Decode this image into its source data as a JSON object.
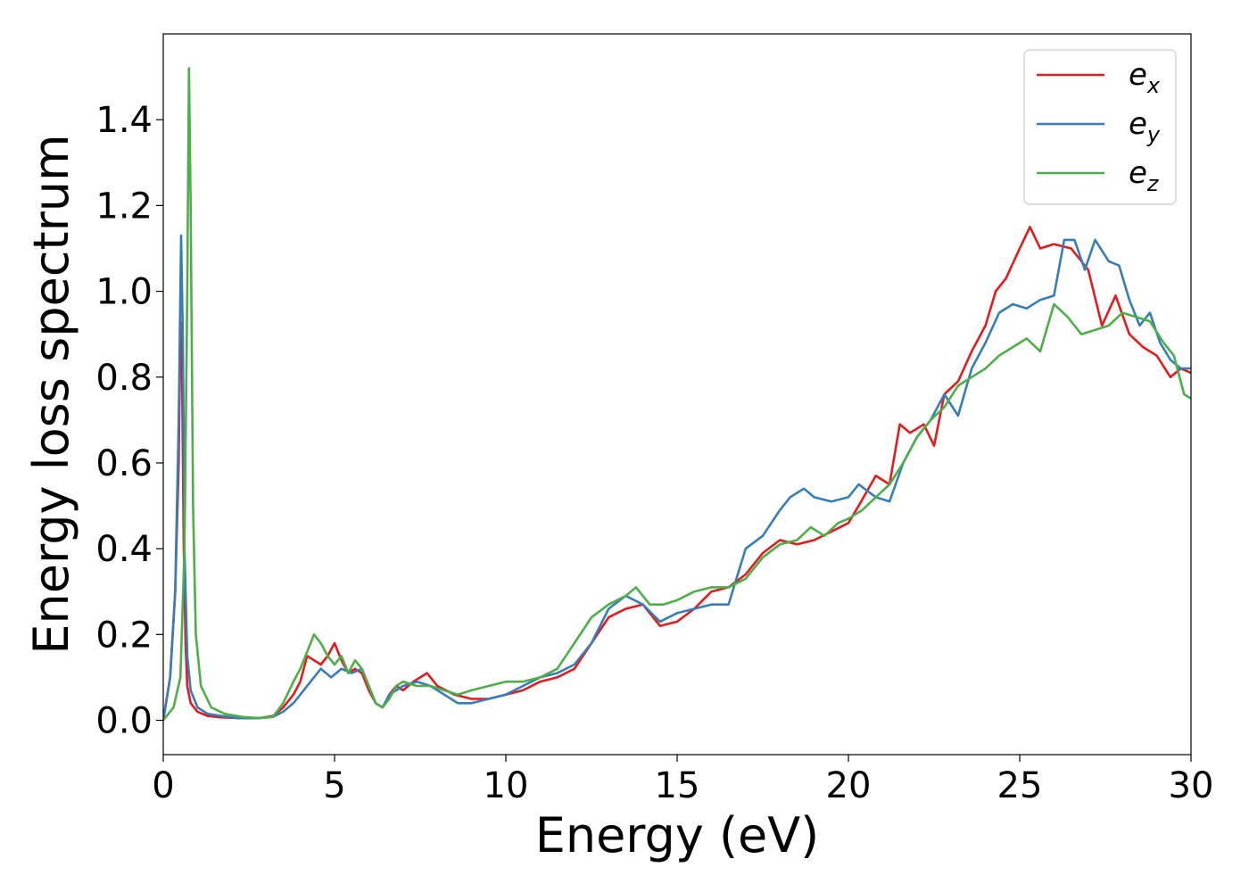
{
  "chart_data": {
    "type": "line",
    "title": "",
    "xlabel": "Energy (eV)",
    "ylabel": "Energy loss spectrum",
    "xlim": [
      0,
      30
    ],
    "ylim": [
      -0.08,
      1.6
    ],
    "xticks": [
      0,
      5,
      10,
      15,
      20,
      25,
      30
    ],
    "xtick_labels": [
      "0",
      "5",
      "10",
      "15",
      "20",
      "25",
      "30"
    ],
    "yticks": [
      0.0,
      0.2,
      0.4,
      0.6,
      0.8,
      1.0,
      1.2,
      1.4
    ],
    "ytick_labels": [
      "0.0",
      "0.2",
      "0.4",
      "0.6",
      "0.8",
      "1.0",
      "1.2",
      "1.4"
    ],
    "grid": false,
    "legend_position": "top-right",
    "series": [
      {
        "name": "e_x",
        "legend_base": "e",
        "legend_sub": "x",
        "color": "#e41a1c",
        "x": [
          0,
          0.2,
          0.35,
          0.45,
          0.5,
          0.55,
          0.6,
          0.65,
          0.7,
          0.8,
          1.0,
          1.3,
          1.7,
          2.2,
          2.8,
          3.2,
          3.5,
          3.8,
          4.0,
          4.2,
          4.4,
          4.6,
          4.8,
          5.0,
          5.2,
          5.4,
          5.6,
          5.8,
          6.0,
          6.2,
          6.4,
          6.6,
          6.8,
          7.0,
          7.3,
          7.7,
          8.0,
          8.5,
          9.0,
          9.5,
          10.0,
          10.5,
          11.0,
          11.5,
          12.0,
          12.5,
          13.0,
          13.5,
          14.0,
          14.5,
          15.0,
          15.5,
          16.0,
          16.5,
          17.0,
          17.5,
          18.0,
          18.5,
          19.0,
          19.5,
          20.0,
          20.3,
          20.8,
          21.2,
          21.5,
          21.8,
          22.2,
          22.5,
          22.8,
          23.2,
          23.6,
          24.0,
          24.3,
          24.6,
          25.0,
          25.3,
          25.6,
          26.0,
          26.5,
          27.0,
          27.4,
          27.8,
          28.2,
          28.6,
          29.0,
          29.4,
          29.7,
          30.0
        ],
        "y": [
          0.0,
          0.1,
          0.3,
          0.6,
          0.93,
          0.8,
          0.4,
          0.18,
          0.08,
          0.04,
          0.02,
          0.01,
          0.007,
          0.005,
          0.005,
          0.01,
          0.03,
          0.06,
          0.09,
          0.15,
          0.14,
          0.13,
          0.15,
          0.18,
          0.14,
          0.11,
          0.12,
          0.11,
          0.07,
          0.04,
          0.03,
          0.06,
          0.08,
          0.07,
          0.09,
          0.11,
          0.08,
          0.06,
          0.05,
          0.05,
          0.06,
          0.07,
          0.09,
          0.1,
          0.12,
          0.18,
          0.24,
          0.26,
          0.27,
          0.22,
          0.23,
          0.26,
          0.3,
          0.31,
          0.34,
          0.39,
          0.42,
          0.41,
          0.42,
          0.44,
          0.46,
          0.5,
          0.57,
          0.55,
          0.69,
          0.67,
          0.69,
          0.64,
          0.76,
          0.79,
          0.86,
          0.92,
          1.0,
          1.03,
          1.1,
          1.15,
          1.1,
          1.11,
          1.1,
          1.05,
          0.92,
          0.99,
          0.9,
          0.87,
          0.85,
          0.8,
          0.82,
          0.81
        ]
      },
      {
        "name": "e_y",
        "legend_base": "e",
        "legend_sub": "y",
        "color": "#377eb8",
        "x": [
          0,
          0.2,
          0.35,
          0.45,
          0.52,
          0.57,
          0.62,
          0.7,
          0.8,
          1.0,
          1.3,
          1.7,
          2.2,
          2.8,
          3.2,
          3.5,
          3.8,
          4.0,
          4.3,
          4.6,
          4.9,
          5.2,
          5.5,
          5.8,
          6.0,
          6.2,
          6.4,
          6.6,
          6.8,
          7.0,
          7.4,
          7.8,
          8.2,
          8.6,
          9.0,
          9.5,
          10.0,
          10.5,
          11.0,
          11.5,
          12.0,
          12.5,
          13.0,
          13.5,
          14.0,
          14.5,
          15.0,
          15.5,
          16.0,
          16.5,
          17.0,
          17.5,
          18.0,
          18.3,
          18.7,
          19.0,
          19.5,
          20.0,
          20.3,
          20.8,
          21.2,
          21.6,
          22.0,
          22.4,
          22.8,
          23.2,
          23.6,
          24.0,
          24.4,
          24.8,
          25.2,
          25.6,
          26.0,
          26.3,
          26.6,
          26.9,
          27.2,
          27.6,
          27.9,
          28.2,
          28.5,
          28.8,
          29.1,
          29.4,
          29.7,
          30.0
        ],
        "y": [
          0.0,
          0.1,
          0.3,
          0.7,
          1.13,
          0.9,
          0.4,
          0.15,
          0.07,
          0.03,
          0.015,
          0.01,
          0.005,
          0.005,
          0.008,
          0.02,
          0.04,
          0.06,
          0.09,
          0.12,
          0.1,
          0.12,
          0.11,
          0.12,
          0.08,
          0.04,
          0.03,
          0.06,
          0.07,
          0.08,
          0.09,
          0.08,
          0.06,
          0.04,
          0.04,
          0.05,
          0.06,
          0.08,
          0.1,
          0.11,
          0.13,
          0.18,
          0.26,
          0.29,
          0.27,
          0.23,
          0.25,
          0.26,
          0.27,
          0.27,
          0.4,
          0.43,
          0.49,
          0.52,
          0.54,
          0.52,
          0.51,
          0.52,
          0.55,
          0.52,
          0.51,
          0.6,
          0.66,
          0.7,
          0.76,
          0.71,
          0.82,
          0.88,
          0.95,
          0.97,
          0.96,
          0.98,
          0.99,
          1.12,
          1.12,
          1.05,
          1.12,
          1.07,
          1.06,
          0.98,
          0.92,
          0.95,
          0.88,
          0.84,
          0.82,
          0.82
        ]
      },
      {
        "name": "e_z",
        "legend_base": "e",
        "legend_sub": "z",
        "color": "#4daf4a",
        "x": [
          0,
          0.3,
          0.5,
          0.62,
          0.7,
          0.75,
          0.8,
          0.87,
          0.95,
          1.1,
          1.4,
          1.8,
          2.3,
          2.8,
          3.2,
          3.5,
          3.8,
          4.0,
          4.2,
          4.4,
          4.6,
          4.8,
          5.0,
          5.2,
          5.4,
          5.6,
          5.8,
          6.0,
          6.2,
          6.4,
          6.6,
          6.8,
          7.0,
          7.4,
          7.8,
          8.2,
          8.6,
          9.0,
          9.5,
          10.0,
          10.5,
          11.0,
          11.5,
          12.0,
          12.5,
          13.0,
          13.5,
          13.8,
          14.2,
          14.6,
          15.0,
          15.5,
          16.0,
          16.5,
          17.0,
          17.5,
          18.0,
          18.5,
          18.9,
          19.3,
          19.7,
          20.0,
          20.4,
          20.8,
          21.2,
          21.6,
          22.0,
          22.4,
          22.8,
          23.2,
          23.6,
          24.0,
          24.4,
          24.8,
          25.2,
          25.6,
          26.0,
          26.4,
          26.8,
          27.2,
          27.6,
          28.0,
          28.4,
          28.8,
          29.2,
          29.5,
          29.8,
          30.0
        ],
        "y": [
          0.0,
          0.03,
          0.1,
          0.4,
          1.0,
          1.52,
          1.2,
          0.5,
          0.2,
          0.08,
          0.03,
          0.015,
          0.008,
          0.005,
          0.008,
          0.04,
          0.09,
          0.12,
          0.16,
          0.2,
          0.18,
          0.15,
          0.13,
          0.15,
          0.11,
          0.14,
          0.12,
          0.08,
          0.04,
          0.03,
          0.05,
          0.08,
          0.09,
          0.08,
          0.08,
          0.07,
          0.06,
          0.07,
          0.08,
          0.09,
          0.09,
          0.1,
          0.12,
          0.18,
          0.24,
          0.27,
          0.29,
          0.31,
          0.27,
          0.27,
          0.28,
          0.3,
          0.31,
          0.31,
          0.33,
          0.38,
          0.41,
          0.42,
          0.45,
          0.43,
          0.46,
          0.47,
          0.49,
          0.52,
          0.55,
          0.6,
          0.66,
          0.7,
          0.73,
          0.78,
          0.8,
          0.82,
          0.85,
          0.87,
          0.89,
          0.86,
          0.97,
          0.94,
          0.9,
          0.91,
          0.92,
          0.95,
          0.94,
          0.93,
          0.88,
          0.85,
          0.76,
          0.75
        ]
      }
    ]
  }
}
